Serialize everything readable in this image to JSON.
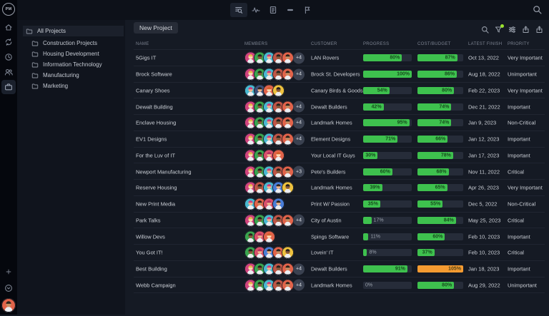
{
  "brand": {
    "logo_text": "PM"
  },
  "rail": {
    "items": [
      {
        "name": "home",
        "icon": "home",
        "active": false
      },
      {
        "name": "sync",
        "icon": "sync",
        "active": false
      },
      {
        "name": "history",
        "icon": "clock",
        "active": false
      },
      {
        "name": "team",
        "icon": "users",
        "active": false
      },
      {
        "name": "projects",
        "icon": "briefcase",
        "active": true
      }
    ],
    "bottom": [
      {
        "name": "add",
        "icon": "plus"
      },
      {
        "name": "help",
        "icon": "help"
      }
    ],
    "user_avatar_palette": "useravatar"
  },
  "sidebar": {
    "root_label": "All Projects",
    "folders": [
      "Construction Projects",
      "Housing Development",
      "Information Technology",
      "Manufacturing",
      "Marketing"
    ]
  },
  "topbar": {
    "tabs": [
      {
        "name": "overview",
        "icon": "listsearch",
        "active": true
      },
      {
        "name": "activity",
        "icon": "activity",
        "active": false
      },
      {
        "name": "report",
        "icon": "clipboard",
        "active": false
      },
      {
        "name": "timeline",
        "icon": "dash",
        "active": false
      },
      {
        "name": "flag",
        "icon": "flag",
        "active": false
      }
    ]
  },
  "content_header": {
    "new_project_label": "New Project",
    "icons": [
      "search",
      "funnel",
      "sliders",
      "upload",
      "upload"
    ],
    "filter_dot_color": "#9be32e"
  },
  "table": {
    "columns": [
      "NAME",
      "MEMBERS",
      "CUSTOMER",
      "PROGRESS",
      "COST/BUDGET",
      "LATEST FINISH",
      "PRIORITY"
    ],
    "rows": [
      {
        "name": "5Gigs IT",
        "avatars": [
          "pink",
          "green",
          "teal",
          "brown",
          "orange"
        ],
        "extra": "+4",
        "customer": "LAN Rovers",
        "progress": 80,
        "cost": 87,
        "cost_over": false,
        "finish": "Oct 13, 2022",
        "priority": "Very Important"
      },
      {
        "name": "Brock Software",
        "avatars": [
          "pink",
          "green",
          "teal",
          "brown",
          "orange"
        ],
        "extra": "+4",
        "customer": "Brock St. Developers",
        "progress": 100,
        "cost": 86,
        "cost_over": false,
        "finish": "Aug 18, 2022",
        "priority": "Unimportant"
      },
      {
        "name": "Canary Shoes",
        "avatars": [
          "teal",
          "navy",
          "redhead",
          "yellow"
        ],
        "extra": "",
        "customer": "Canary Birds & Goods",
        "progress": 54,
        "cost": 80,
        "cost_over": false,
        "finish": "Feb 22, 2023",
        "priority": "Very Important"
      },
      {
        "name": "Dewalt Building",
        "avatars": [
          "pink",
          "green",
          "teal",
          "brown",
          "orange"
        ],
        "extra": "+4",
        "customer": "Dewalt Builders",
        "progress": 42,
        "cost": 74,
        "cost_over": false,
        "finish": "Dec 21, 2022",
        "priority": "Important"
      },
      {
        "name": "Enclave Housing",
        "avatars": [
          "pink",
          "green",
          "teal",
          "brown",
          "orange"
        ],
        "extra": "+4",
        "customer": "Landmark Homes",
        "progress": 95,
        "cost": 74,
        "cost_over": false,
        "finish": "Jan 9, 2023",
        "priority": "Non-Critical"
      },
      {
        "name": "EV1 Designs",
        "avatars": [
          "pink",
          "green",
          "teal",
          "brown",
          "orange"
        ],
        "extra": "+4",
        "customer": "Element Designs",
        "progress": 71,
        "cost": 66,
        "cost_over": false,
        "finish": "Jan 12, 2023",
        "priority": "Important"
      },
      {
        "name": "For the Luv of IT",
        "avatars": [
          "pink",
          "green",
          "red",
          "redhead"
        ],
        "extra": "",
        "customer": "Your Local IT Guys",
        "progress": 30,
        "cost": 78,
        "cost_over": false,
        "finish": "Jan 17, 2023",
        "priority": "Important"
      },
      {
        "name": "Newport Manufacturing",
        "avatars": [
          "pink",
          "green",
          "teal",
          "brown",
          "orange"
        ],
        "extra": "+3",
        "customer": "Pete's Builders",
        "progress": 60,
        "cost": 68,
        "cost_over": false,
        "finish": "Nov 11, 2022",
        "priority": "Critical"
      },
      {
        "name": "Reserve Housing",
        "avatars": [
          "pink",
          "brown",
          "teal",
          "blue",
          "yellow"
        ],
        "extra": "",
        "customer": "Landmark Homes",
        "progress": 39,
        "cost": 65,
        "cost_over": false,
        "finish": "Apr 26, 2023",
        "priority": "Very Important"
      },
      {
        "name": "New Print Media",
        "avatars": [
          "teal",
          "orange",
          "red",
          "blue"
        ],
        "extra": "",
        "customer": "Print W/ Passion",
        "progress": 35,
        "cost": 55,
        "cost_over": false,
        "finish": "Dec 5, 2022",
        "priority": "Non-Critical"
      },
      {
        "name": "Park Talks",
        "avatars": [
          "pink",
          "green",
          "teal",
          "brown",
          "orange"
        ],
        "extra": "+4",
        "customer": "City of Austin",
        "progress": 17,
        "cost": 84,
        "cost_over": false,
        "finish": "May 25, 2023",
        "priority": "Critical"
      },
      {
        "name": "Willow Devs",
        "avatars": [
          "green",
          "red",
          "redhead"
        ],
        "extra": "",
        "customer": "Spings Software",
        "progress": 11,
        "cost": 60,
        "cost_over": false,
        "finish": "Feb 10, 2023",
        "priority": "Important"
      },
      {
        "name": "You Got IT!",
        "avatars": [
          "green",
          "red",
          "blue",
          "orange",
          "yellow"
        ],
        "extra": "",
        "customer": "Lovein' IT",
        "progress": 8,
        "cost": 37,
        "cost_over": false,
        "finish": "Feb 10, 2023",
        "priority": "Critical"
      },
      {
        "name": "Best Building",
        "avatars": [
          "pink",
          "green",
          "teal",
          "brown",
          "orange"
        ],
        "extra": "+4",
        "customer": "Dewalt Builders",
        "progress": 91,
        "cost": 105,
        "cost_over": true,
        "finish": "Jan 18, 2023",
        "priority": "Important"
      },
      {
        "name": "Webb Campaign",
        "avatars": [
          "pink",
          "green",
          "teal",
          "brown",
          "orange"
        ],
        "extra": "+4",
        "customer": "Landmark Homes",
        "progress": 0,
        "cost": 80,
        "cost_over": false,
        "finish": "Aug 29, 2022",
        "priority": "Unimportant"
      }
    ]
  },
  "avatar_palettes": {
    "pink": {
      "bg": "#d0437e",
      "skin": "#ffd9b3",
      "hair": "#e9b64d"
    },
    "green": {
      "bg": "#3aa54f",
      "skin": "#8a5a3b",
      "hair": "#26211d"
    },
    "teal": {
      "bg": "#49b9d1",
      "skin": "#f0b68c",
      "hair": "#cf3d7a"
    },
    "brown": {
      "bg": "#c05547",
      "skin": "#8a5a3b",
      "hair": "#26211d"
    },
    "orange": {
      "bg": "#e2634a",
      "skin": "#c98e62",
      "hair": "#2e241c"
    },
    "navy": {
      "bg": "#3d5078",
      "skin": "#f0b68c",
      "hair": "#2e241c"
    },
    "redhead": {
      "bg": "#e2634a",
      "skin": "#ffd9b3",
      "hair": "#d2622a"
    },
    "yellow": {
      "bg": "#eec23e",
      "skin": "#8a5a3b",
      "hair": "#26211d"
    },
    "red": {
      "bg": "#d9506b",
      "skin": "#f0b68c",
      "hair": "#b3305f"
    },
    "blue": {
      "bg": "#4a7ed8",
      "skin": "#f0b68c",
      "hair": "#2e241c"
    },
    "useravatar": {
      "bg": "#e2634a",
      "skin": "#c98e62",
      "hair": "#2e241c"
    }
  },
  "colors": {
    "progress_green": "#3ec14e",
    "over_budget_orange": "#f59b31"
  }
}
